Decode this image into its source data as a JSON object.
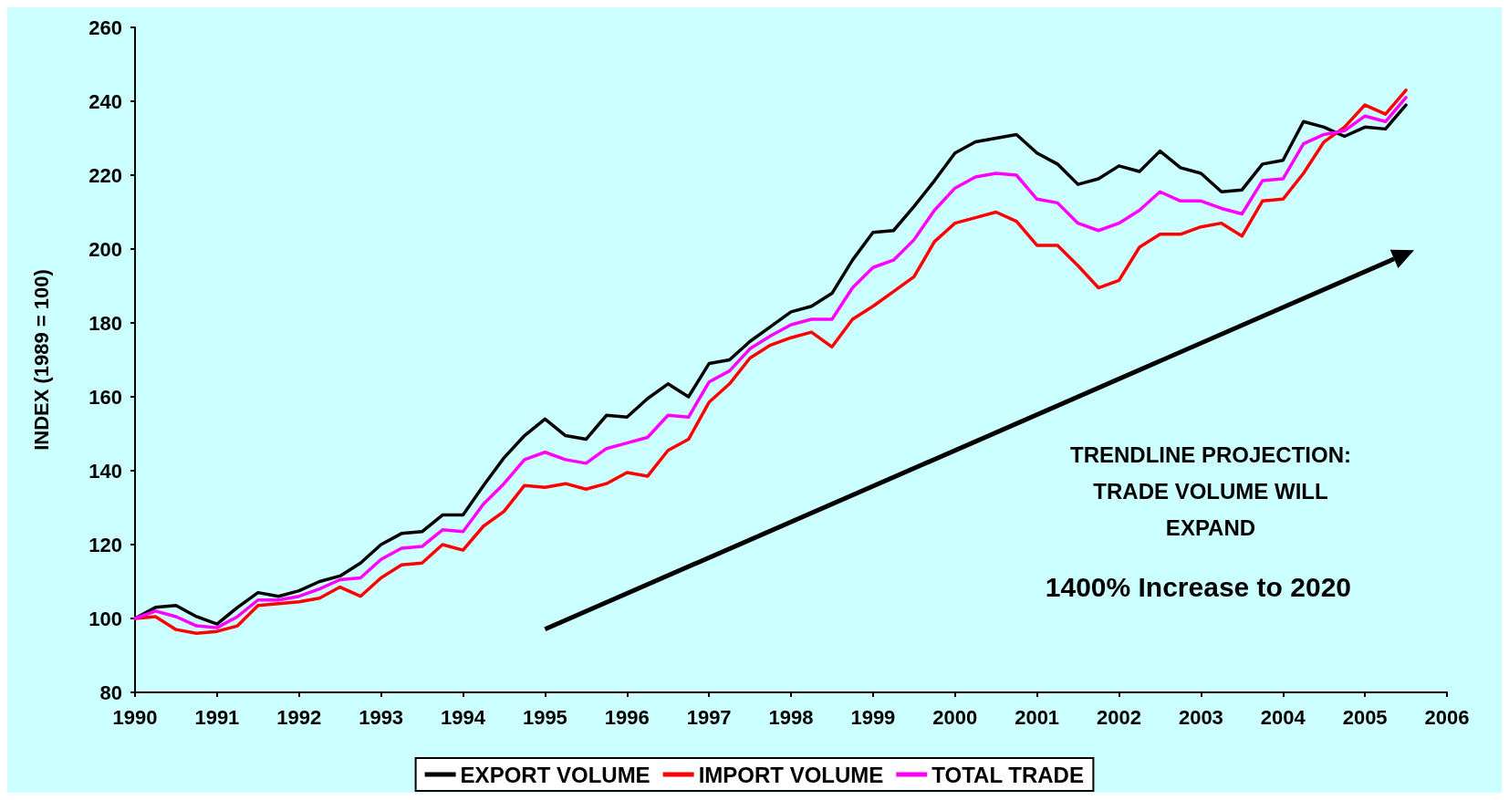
{
  "chart_data": {
    "type": "line",
    "ylabel": "INDEX (1989 = 100)",
    "x": [
      1990,
      1990.25,
      1990.5,
      1990.75,
      1991,
      1991.25,
      1991.5,
      1991.75,
      1992,
      1992.25,
      1992.5,
      1992.75,
      1993,
      1993.25,
      1993.5,
      1993.75,
      1994,
      1994.25,
      1994.5,
      1994.75,
      1995,
      1995.25,
      1995.5,
      1995.75,
      1996,
      1996.25,
      1996.5,
      1996.75,
      1997,
      1997.25,
      1997.5,
      1997.75,
      1998,
      1998.25,
      1998.5,
      1998.75,
      1999,
      1999.25,
      1999.5,
      1999.75,
      2000,
      2000.25,
      2000.5,
      2000.75,
      2001,
      2001.25,
      2001.5,
      2001.75,
      2002,
      2002.25,
      2002.5,
      2002.75,
      2003,
      2003.25,
      2003.5,
      2003.75,
      2004,
      2004.25,
      2004.5,
      2004.75,
      2005,
      2005.25,
      2005.5
    ],
    "series": [
      {
        "name": "EXPORT VOLUME",
        "color": "#000000",
        "values": [
          100,
          103,
          103.5,
          100.5,
          98.5,
          103,
          107,
          106,
          107.5,
          110,
          111.5,
          115,
          120,
          123,
          123.5,
          128,
          128,
          136,
          143.5,
          149.5,
          154,
          149.5,
          148.5,
          155,
          154.5,
          159.5,
          163.5,
          160,
          169,
          170,
          175,
          179,
          183,
          184.5,
          188,
          197,
          204.5,
          205,
          211.5,
          218.5,
          226,
          229,
          230,
          231,
          226,
          223,
          217.5,
          219,
          222.5,
          221,
          226.5,
          222,
          220.5,
          215.5,
          216,
          223,
          224,
          234.5,
          233,
          230.5,
          233,
          232.5,
          239
        ]
      },
      {
        "name": "IMPORT VOLUME",
        "color": "#ff0000",
        "values": [
          100,
          100.5,
          97,
          96,
          96.5,
          98,
          103.5,
          104,
          104.5,
          105.5,
          108.5,
          106,
          111,
          114.5,
          115,
          120,
          118.5,
          125,
          129,
          136,
          135.5,
          136.5,
          135,
          136.5,
          139.5,
          138.5,
          145.5,
          148.5,
          158.5,
          163.5,
          170.5,
          174,
          176,
          177.5,
          173.5,
          181,
          184.5,
          188.5,
          192.5,
          202,
          207,
          208.5,
          210,
          207.5,
          201,
          201,
          195.5,
          189.5,
          191.5,
          200.5,
          204,
          204,
          206,
          207,
          203.5,
          213,
          213.5,
          220.5,
          229,
          233,
          239,
          236.5,
          243
        ]
      },
      {
        "name": "TOTAL TRADE",
        "color": "#ff00ff",
        "values": [
          100,
          102,
          100.5,
          98,
          97.5,
          100.5,
          105,
          105,
          106,
          108,
          110.5,
          111,
          116,
          119,
          119.5,
          124,
          123.5,
          131,
          136.5,
          143,
          145,
          143,
          142,
          146,
          147.5,
          149,
          155,
          154.5,
          164,
          167,
          173,
          176.5,
          179.5,
          181,
          181,
          189.5,
          195,
          197,
          202.5,
          210.5,
          216.5,
          219.5,
          220.5,
          220,
          213.5,
          212.5,
          207,
          205,
          207,
          210.5,
          215.5,
          213,
          213,
          211,
          209.5,
          218.5,
          219,
          228.5,
          231,
          232,
          236,
          234.5,
          241
        ]
      }
    ],
    "xlim": [
      1990,
      2006
    ],
    "xticks": [
      1990,
      1991,
      1992,
      1993,
      1994,
      1995,
      1996,
      1997,
      1998,
      1999,
      2000,
      2001,
      2002,
      2003,
      2004,
      2005,
      2006
    ],
    "ylim": [
      80,
      260
    ],
    "yticks": [
      80,
      100,
      120,
      140,
      160,
      180,
      200,
      220,
      240,
      260
    ],
    "annotations": [
      "TRENDLINE PROJECTION:\nTRADE VOLUME WILL\nEXPAND",
      "1400% Increase to 2020"
    ],
    "grid": false,
    "legend": "bottom",
    "marker": "none",
    "line_style": "solid"
  }
}
